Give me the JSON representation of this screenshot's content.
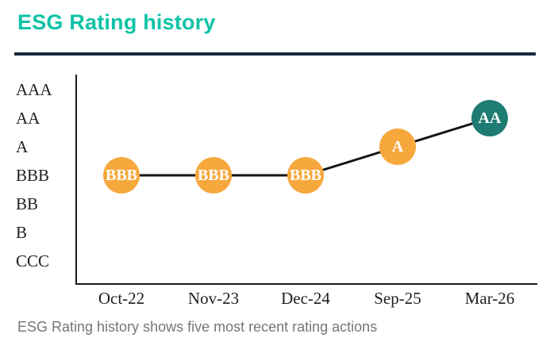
{
  "header": {
    "title": "ESG Rating history"
  },
  "caption": {
    "text": "ESG Rating history shows five most recent rating actions"
  },
  "colors": {
    "accent_teal": "#0FC3A6",
    "divider_navy": "#15283A",
    "marker_orange": "#F6A83D",
    "marker_teal": "#1E7C72",
    "line_black": "#141414",
    "axis_black": "#1B1B1B",
    "tick_text": "#1F1F1F",
    "caption_gray": "#757575"
  },
  "chart_data": {
    "type": "line",
    "title": "ESG Rating history",
    "categories": [
      "Oct-22",
      "Nov-23",
      "Dec-24",
      "Sep-25",
      "Mar-26"
    ],
    "values": [
      "BBB",
      "BBB",
      "BBB",
      "A",
      "AA"
    ],
    "series": [
      {
        "name": "ESG Rating",
        "values": [
          "BBB",
          "BBB",
          "BBB",
          "A",
          "AA"
        ]
      }
    ],
    "yticks_top_to_bottom": [
      "AAA",
      "AA",
      "A",
      "BBB",
      "BB",
      "B",
      "CCC"
    ],
    "marker_labels": [
      "BBB",
      "BBB",
      "BBB",
      "A",
      "AA"
    ],
    "marker_colors": [
      "#F6A83D",
      "#F6A83D",
      "#F6A83D",
      "#F6A83D",
      "#1E7C72"
    ],
    "xlabel": "",
    "ylabel": "",
    "legend": "none",
    "grid": false
  }
}
